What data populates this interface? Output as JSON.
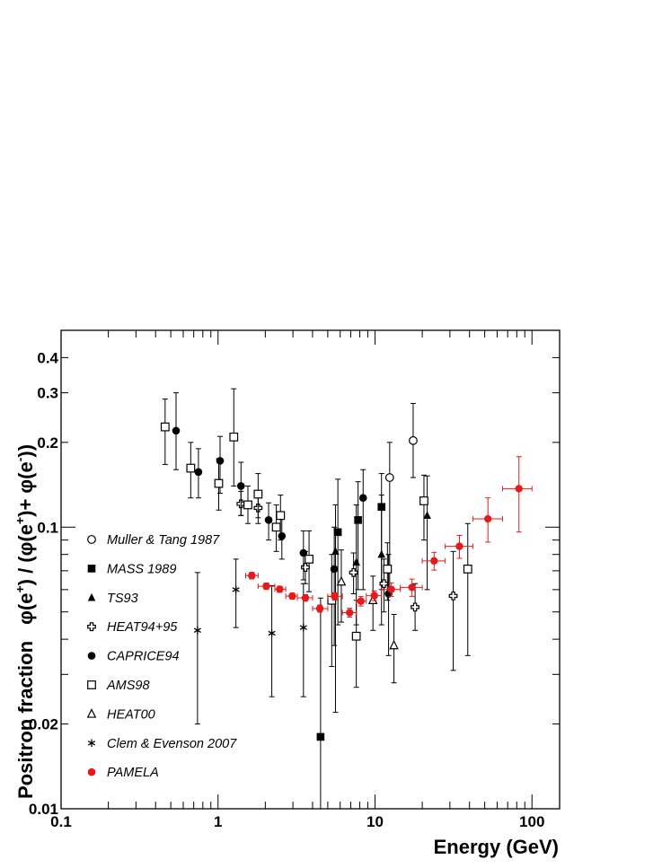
{
  "chart_data": {
    "type": "scatter",
    "xlabel": "Energy (GeV)",
    "ylabel_parts": [
      "Positron fraction",
      "φ(e",
      "+",
      ") / (φ(e",
      "+",
      ")+ φ(e",
      "-",
      "))"
    ],
    "xscale": "log",
    "yscale": "log",
    "xlim": [
      0.1,
      150
    ],
    "ylim": [
      0.01,
      0.5
    ],
    "x_tick_labels": [
      {
        "value": 0.1,
        "label": "0.1"
      },
      {
        "value": 1,
        "label": "1"
      },
      {
        "value": 10,
        "label": "10"
      },
      {
        "value": 100,
        "label": "100"
      }
    ],
    "y_tick_labels": [
      {
        "value": 0.01,
        "label": "0.01"
      },
      {
        "value": 0.02,
        "label": "0.02"
      },
      {
        "value": 0.1,
        "label": "0.1"
      },
      {
        "value": 0.2,
        "label": "0.2"
      },
      {
        "value": 0.3,
        "label": "0.3"
      },
      {
        "value": 0.4,
        "label": "0.4"
      }
    ],
    "legend_position": "left",
    "series": [
      {
        "name": "Muller & Tang 1987",
        "marker": "open-circle",
        "color": "#000000",
        "points": [
          {
            "x": 12.4,
            "y": 0.15,
            "ylo": 0.06,
            "yhi": 0.2
          },
          {
            "x": 17.5,
            "y": 0.203,
            "ylo": 0.15,
            "yhi": 0.275
          }
        ]
      },
      {
        "name": "MASS 1989",
        "marker": "filled-square",
        "color": "#000000",
        "points": [
          {
            "x": 4.5,
            "y": 0.018,
            "ylo": 0.0085,
            "yhi": 0.056
          },
          {
            "x": 5.8,
            "y": 0.096,
            "ylo": 0.045,
            "yhi": 0.148
          },
          {
            "x": 7.8,
            "y": 0.106,
            "ylo": 0.06,
            "yhi": 0.145
          },
          {
            "x": 11.0,
            "y": 0.118,
            "ylo": 0.06,
            "yhi": 0.155
          }
        ]
      },
      {
        "name": "TS93",
        "marker": "filled-triangle",
        "color": "#000000",
        "points": [
          {
            "x": 5.6,
            "y": 0.082,
            "ylo": 0.022,
            "yhi": 0.12
          },
          {
            "x": 7.6,
            "y": 0.075,
            "ylo": 0.045,
            "yhi": 0.12
          },
          {
            "x": 11.0,
            "y": 0.08,
            "ylo": 0.045,
            "yhi": 0.13
          },
          {
            "x": 21.5,
            "y": 0.11,
            "ylo": 0.06,
            "yhi": 0.152
          }
        ]
      },
      {
        "name": "HEAT94+95",
        "marker": "open-cross",
        "color": "#000000",
        "points": [
          {
            "x": 1.4,
            "y": 0.121,
            "ylo": 0.11,
            "yhi": 0.134
          },
          {
            "x": 1.8,
            "y": 0.117,
            "ylo": 0.103,
            "yhi": 0.131
          },
          {
            "x": 3.6,
            "y": 0.072,
            "ylo": 0.063,
            "yhi": 0.082
          },
          {
            "x": 7.3,
            "y": 0.069,
            "ylo": 0.058,
            "yhi": 0.081
          },
          {
            "x": 11.4,
            "y": 0.063,
            "ylo": 0.05,
            "yhi": 0.077
          },
          {
            "x": 18.0,
            "y": 0.052,
            "ylo": 0.043,
            "yhi": 0.063
          },
          {
            "x": 31.5,
            "y": 0.057,
            "ylo": 0.031,
            "yhi": 0.082
          }
        ]
      },
      {
        "name": "CAPRICE94",
        "marker": "filled-circle",
        "color": "#000000",
        "points": [
          {
            "x": 0.54,
            "y": 0.22,
            "ylo": 0.16,
            "yhi": 0.3
          },
          {
            "x": 0.75,
            "y": 0.157,
            "ylo": 0.127,
            "yhi": 0.19
          },
          {
            "x": 1.03,
            "y": 0.172,
            "ylo": 0.132,
            "yhi": 0.21
          },
          {
            "x": 1.4,
            "y": 0.14,
            "ylo": 0.11,
            "yhi": 0.17
          },
          {
            "x": 2.1,
            "y": 0.106,
            "ylo": 0.09,
            "yhi": 0.122
          },
          {
            "x": 2.55,
            "y": 0.093,
            "ylo": 0.077,
            "yhi": 0.11
          },
          {
            "x": 3.5,
            "y": 0.081,
            "ylo": 0.065,
            "yhi": 0.097
          },
          {
            "x": 5.5,
            "y": 0.071,
            "ylo": 0.038,
            "yhi": 0.1
          },
          {
            "x": 8.4,
            "y": 0.127,
            "ylo": 0.06,
            "yhi": 0.16
          },
          {
            "x": 12.2,
            "y": 0.058,
            "ylo": 0.035,
            "yhi": 0.08
          }
        ]
      },
      {
        "name": "AMS98",
        "marker": "open-square",
        "color": "#000000",
        "points": [
          {
            "x": 0.46,
            "y": 0.227,
            "ylo": 0.167,
            "yhi": 0.285
          },
          {
            "x": 0.67,
            "y": 0.162,
            "ylo": 0.127,
            "yhi": 0.2
          },
          {
            "x": 1.01,
            "y": 0.143,
            "ylo": 0.115,
            "yhi": 0.175
          },
          {
            "x": 1.26,
            "y": 0.209,
            "ylo": 0.14,
            "yhi": 0.31
          },
          {
            "x": 1.55,
            "y": 0.12,
            "ylo": 0.103,
            "yhi": 0.14
          },
          {
            "x": 1.8,
            "y": 0.131,
            "ylo": 0.108,
            "yhi": 0.155
          },
          {
            "x": 2.35,
            "y": 0.1,
            "ylo": 0.082,
            "yhi": 0.12
          },
          {
            "x": 2.5,
            "y": 0.11,
            "ylo": 0.09,
            "yhi": 0.13
          },
          {
            "x": 3.8,
            "y": 0.077,
            "ylo": 0.059,
            "yhi": 0.097
          },
          {
            "x": 5.3,
            "y": 0.055,
            "ylo": 0.032,
            "yhi": 0.08
          },
          {
            "x": 7.6,
            "y": 0.041,
            "ylo": 0.027,
            "yhi": 0.055
          },
          {
            "x": 12.0,
            "y": 0.071,
            "ylo": 0.055,
            "yhi": 0.088
          },
          {
            "x": 20.5,
            "y": 0.124,
            "ylo": 0.09,
            "yhi": 0.153
          },
          {
            "x": 39.0,
            "y": 0.071,
            "ylo": 0.035,
            "yhi": 0.103
          }
        ]
      },
      {
        "name": "HEAT00",
        "marker": "open-triangle",
        "color": "#000000",
        "points": [
          {
            "x": 6.1,
            "y": 0.064,
            "ylo": 0.046,
            "yhi": 0.083
          },
          {
            "x": 9.7,
            "y": 0.055,
            "ylo": 0.043,
            "yhi": 0.067
          },
          {
            "x": 13.2,
            "y": 0.038,
            "ylo": 0.028,
            "yhi": 0.049
          }
        ]
      },
      {
        "name": "Clem & Evenson 2007",
        "marker": "asterisk",
        "color": "#000000",
        "points": [
          {
            "x": 0.74,
            "y": 0.043,
            "ylo": 0.02,
            "yhi": 0.069
          },
          {
            "x": 1.3,
            "y": 0.06,
            "ylo": 0.044,
            "yhi": 0.077
          },
          {
            "x": 2.2,
            "y": 0.042,
            "ylo": 0.025,
            "yhi": 0.062
          },
          {
            "x": 3.5,
            "y": 0.044,
            "ylo": 0.025,
            "yhi": 0.063
          }
        ]
      },
      {
        "name": "PAMELA",
        "marker": "red-circle",
        "color": "#e41a1c",
        "points": [
          {
            "x": 1.64,
            "y": 0.0673,
            "xlo": 1.5,
            "xhi": 1.8,
            "ylo": 0.0655,
            "yhi": 0.0691
          },
          {
            "x": 2.03,
            "y": 0.0617,
            "xlo": 1.8,
            "xhi": 2.3,
            "ylo": 0.0601,
            "yhi": 0.0633
          },
          {
            "x": 2.47,
            "y": 0.0602,
            "xlo": 2.3,
            "xhi": 2.7,
            "ylo": 0.0587,
            "yhi": 0.0617
          },
          {
            "x": 2.97,
            "y": 0.0569,
            "xlo": 2.7,
            "xhi": 3.2,
            "ylo": 0.0555,
            "yhi": 0.0583
          },
          {
            "x": 3.6,
            "y": 0.0561,
            "xlo": 3.2,
            "xhi": 4.0,
            "ylo": 0.0546,
            "yhi": 0.0576
          },
          {
            "x": 4.45,
            "y": 0.0514,
            "xlo": 4.0,
            "xhi": 5.0,
            "ylo": 0.0499,
            "yhi": 0.0529
          },
          {
            "x": 5.53,
            "y": 0.0568,
            "xlo": 5.0,
            "xhi": 6.2,
            "ylo": 0.0551,
            "yhi": 0.0585
          },
          {
            "x": 6.89,
            "y": 0.0497,
            "xlo": 6.2,
            "xhi": 7.6,
            "ylo": 0.0479,
            "yhi": 0.0515
          },
          {
            "x": 8.13,
            "y": 0.0546,
            "xlo": 7.6,
            "xhi": 8.8,
            "ylo": 0.0525,
            "yhi": 0.0567
          },
          {
            "x": 9.9,
            "y": 0.0571,
            "xlo": 8.8,
            "xhi": 11.0,
            "ylo": 0.0548,
            "yhi": 0.0594
          },
          {
            "x": 12.7,
            "y": 0.0601,
            "xlo": 11.0,
            "xhi": 14.5,
            "ylo": 0.0568,
            "yhi": 0.0634
          },
          {
            "x": 17.2,
            "y": 0.0611,
            "xlo": 14.5,
            "xhi": 20.0,
            "ylo": 0.0568,
            "yhi": 0.0654
          },
          {
            "x": 23.8,
            "y": 0.0759,
            "xlo": 20.0,
            "xhi": 28.0,
            "ylo": 0.0704,
            "yhi": 0.0814
          },
          {
            "x": 34.5,
            "y": 0.0855,
            "xlo": 28.0,
            "xhi": 42.0,
            "ylo": 0.0775,
            "yhi": 0.0935
          },
          {
            "x": 52.4,
            "y": 0.107,
            "xlo": 42.0,
            "xhi": 65.0,
            "ylo": 0.0885,
            "yhi": 0.127
          },
          {
            "x": 82.6,
            "y": 0.137,
            "xlo": 65.0,
            "xhi": 100.0,
            "ylo": 0.0961,
            "yhi": 0.178
          }
        ]
      }
    ]
  }
}
